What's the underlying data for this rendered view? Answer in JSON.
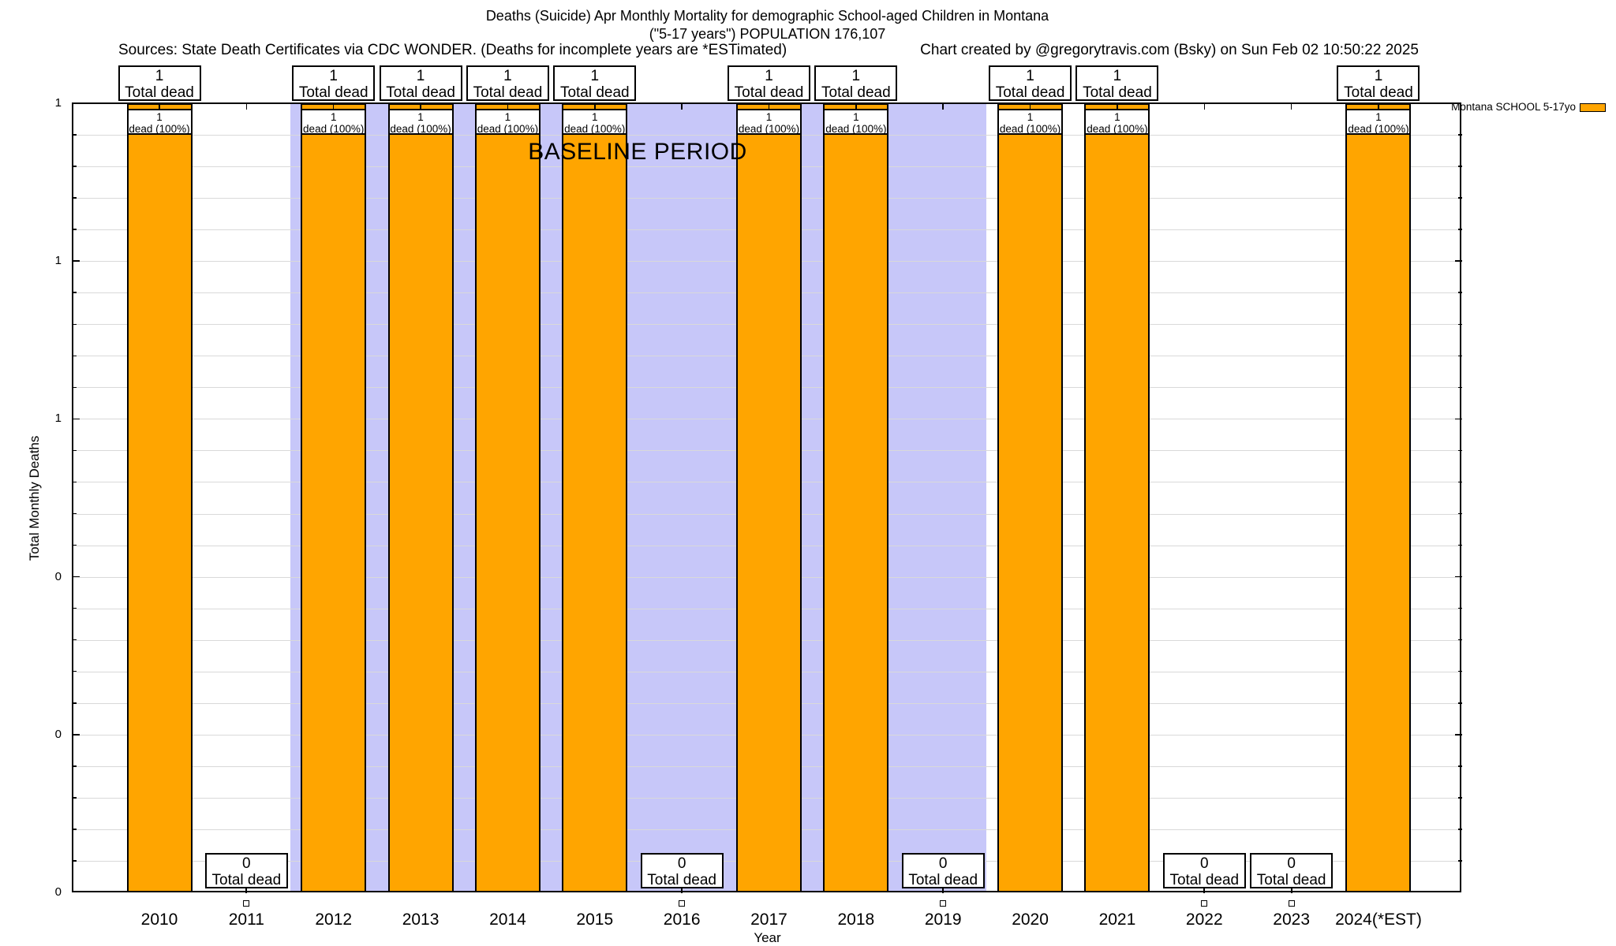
{
  "title": {
    "line1": "Deaths (Suicide) Apr Monthly Mortality for demographic School-aged Children in Montana",
    "line2": "(\"5-17 years\") POPULATION 176,107",
    "sources": "Sources: State Death Certificates via CDC WONDER. (Deaths for incomplete years are *ESTimated)",
    "credit": "Chart created by @gregorytravis.com (Bsky) on Sun Feb 02 10:50:22 2025"
  },
  "legend": {
    "label": "Montana SCHOOL 5-17yo",
    "swatch_color": "#FFA500",
    "position": "top-right"
  },
  "axes": {
    "ylabel": "Total Monthly Deaths",
    "xlabel": "Year",
    "y_range": [
      0,
      1
    ],
    "y_tick_labels_top_to_bottom": [
      "1",
      "1",
      "1",
      "0",
      "0",
      "0"
    ],
    "grid": "horizontal-minor"
  },
  "chart_data": {
    "type": "bar",
    "title": "Deaths (Suicide) Apr Monthly Mortality for demographic School-aged Children in Montana (\"5-17 years\") POPULATION 176,107",
    "xlabel": "Year",
    "ylabel": "Total Monthly Deaths",
    "ylim": [
      0,
      1
    ],
    "categories": [
      "2010",
      "2011",
      "2012",
      "2013",
      "2014",
      "2015",
      "2016",
      "2017",
      "2018",
      "2019",
      "2020",
      "2021",
      "2022",
      "2023",
      "2024(*EST)"
    ],
    "series": [
      {
        "name": "Montana SCHOOL 5-17yo",
        "values": [
          1,
          0,
          1,
          1,
          1,
          1,
          0,
          1,
          1,
          0,
          1,
          1,
          0,
          0,
          1
        ],
        "color": "#FFA500"
      }
    ],
    "total_label_suffix": "Total dead",
    "bar_inner_label": "dead (100%)",
    "baseline_band": {
      "label": "BASELINE PERIOD",
      "from_category": "2012",
      "to_category": "2019",
      "color": "#c7c7f9"
    },
    "legend_position": "top-right"
  },
  "colors": {
    "bar": "#FFA500",
    "band": "#c7c7f9",
    "grid": "#d9d9d9",
    "text": "#000000"
  }
}
